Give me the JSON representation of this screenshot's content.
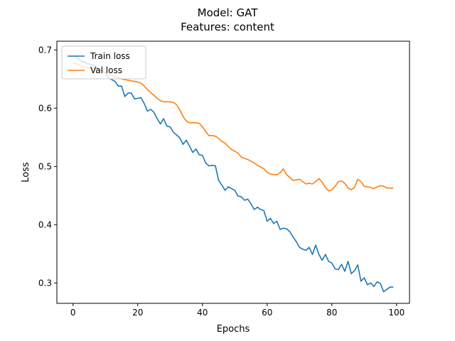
{
  "chart_data": {
    "type": "line",
    "title_lines": [
      "Model: GAT",
      "Features: content"
    ],
    "xlabel": "Epochs",
    "ylabel": "Loss",
    "xlim": [
      -5,
      104
    ],
    "ylim": [
      0.265,
      0.715
    ],
    "xticks": [
      0,
      20,
      40,
      60,
      80,
      100
    ],
    "yticks": [
      0.3,
      0.4,
      0.5,
      0.6,
      0.7
    ],
    "xtick_labels": [
      "0",
      "20",
      "40",
      "60",
      "80",
      "100"
    ],
    "ytick_labels": [
      "0.3",
      "0.4",
      "0.5",
      "0.6",
      "0.7"
    ],
    "legend_position": "upper-left",
    "grid": false,
    "series": [
      {
        "name": "Train loss",
        "color": "#1f77b4",
        "x": [
          0,
          1,
          2,
          3,
          4,
          5,
          6,
          7,
          8,
          9,
          10,
          11,
          12,
          13,
          14,
          15,
          16,
          17,
          18,
          19,
          20,
          21,
          22,
          23,
          24,
          25,
          26,
          27,
          28,
          29,
          30,
          31,
          32,
          33,
          34,
          35,
          36,
          37,
          38,
          39,
          40,
          41,
          42,
          43,
          44,
          45,
          46,
          47,
          48,
          49,
          50,
          51,
          52,
          53,
          54,
          55,
          56,
          57,
          58,
          59,
          60,
          61,
          62,
          63,
          64,
          65,
          66,
          67,
          68,
          69,
          70,
          71,
          72,
          73,
          74,
          75,
          76,
          77,
          78,
          79,
          80,
          81,
          82,
          83,
          84,
          85,
          86,
          87,
          88,
          89,
          90,
          91,
          92,
          93,
          94,
          95,
          96,
          97,
          98,
          99
        ],
        "values": [
          0.69,
          0.688,
          0.683,
          0.68,
          0.678,
          0.676,
          0.674,
          0.672,
          0.668,
          0.664,
          0.66,
          0.652,
          0.649,
          0.646,
          0.638,
          0.638,
          0.62,
          0.626,
          0.626,
          0.616,
          0.617,
          0.618,
          0.608,
          0.595,
          0.598,
          0.593,
          0.582,
          0.573,
          0.582,
          0.569,
          0.568,
          0.559,
          0.554,
          0.549,
          0.538,
          0.545,
          0.535,
          0.524,
          0.53,
          0.52,
          0.519,
          0.506,
          0.501,
          0.502,
          0.501,
          0.476,
          0.468,
          0.459,
          0.465,
          0.462,
          0.459,
          0.449,
          0.448,
          0.442,
          0.444,
          0.436,
          0.426,
          0.43,
          0.426,
          0.424,
          0.406,
          0.411,
          0.402,
          0.406,
          0.392,
          0.394,
          0.393,
          0.388,
          0.379,
          0.371,
          0.361,
          0.358,
          0.356,
          0.361,
          0.349,
          0.365,
          0.349,
          0.339,
          0.349,
          0.337,
          0.334,
          0.324,
          0.323,
          0.332,
          0.32,
          0.337,
          0.316,
          0.321,
          0.331,
          0.303,
          0.309,
          0.297,
          0.3,
          0.294,
          0.302,
          0.299,
          0.285,
          0.289,
          0.293,
          0.293
        ]
      },
      {
        "name": "Val loss",
        "color": "#ff7f0e",
        "x": [
          0,
          1,
          2,
          3,
          4,
          5,
          6,
          7,
          8,
          9,
          10,
          11,
          12,
          13,
          14,
          15,
          16,
          17,
          18,
          19,
          20,
          21,
          22,
          23,
          24,
          25,
          26,
          27,
          28,
          29,
          30,
          31,
          32,
          33,
          34,
          35,
          36,
          37,
          38,
          39,
          40,
          41,
          42,
          43,
          44,
          45,
          46,
          47,
          48,
          49,
          50,
          51,
          52,
          53,
          54,
          55,
          56,
          57,
          58,
          59,
          60,
          61,
          62,
          63,
          64,
          65,
          66,
          67,
          68,
          69,
          70,
          71,
          72,
          73,
          74,
          75,
          76,
          77,
          78,
          79,
          80,
          81,
          82,
          83,
          84,
          85,
          86,
          87,
          88,
          89,
          90,
          91,
          92,
          93,
          94,
          95,
          96,
          97,
          98,
          99
        ],
        "values": [
          0.678,
          0.676,
          0.674,
          0.672,
          0.67,
          0.669,
          0.668,
          0.667,
          0.665,
          0.663,
          0.661,
          0.658,
          0.656,
          0.654,
          0.652,
          0.65,
          0.649,
          0.648,
          0.647,
          0.646,
          0.645,
          0.643,
          0.638,
          0.632,
          0.627,
          0.622,
          0.617,
          0.613,
          0.611,
          0.611,
          0.611,
          0.61,
          0.606,
          0.597,
          0.586,
          0.578,
          0.575,
          0.575,
          0.575,
          0.574,
          0.568,
          0.56,
          0.553,
          0.553,
          0.552,
          0.548,
          0.543,
          0.54,
          0.534,
          0.529,
          0.526,
          0.523,
          0.516,
          0.514,
          0.512,
          0.509,
          0.506,
          0.502,
          0.499,
          0.496,
          0.49,
          0.487,
          0.486,
          0.486,
          0.489,
          0.496,
          0.486,
          0.481,
          0.476,
          0.477,
          0.478,
          0.474,
          0.47,
          0.471,
          0.47,
          0.474,
          0.479,
          0.473,
          0.464,
          0.458,
          0.46,
          0.466,
          0.474,
          0.475,
          0.471,
          0.463,
          0.46,
          0.464,
          0.478,
          0.474,
          0.466,
          0.465,
          0.464,
          0.462,
          0.465,
          0.467,
          0.466,
          0.463,
          0.463,
          0.463
        ]
      }
    ]
  }
}
